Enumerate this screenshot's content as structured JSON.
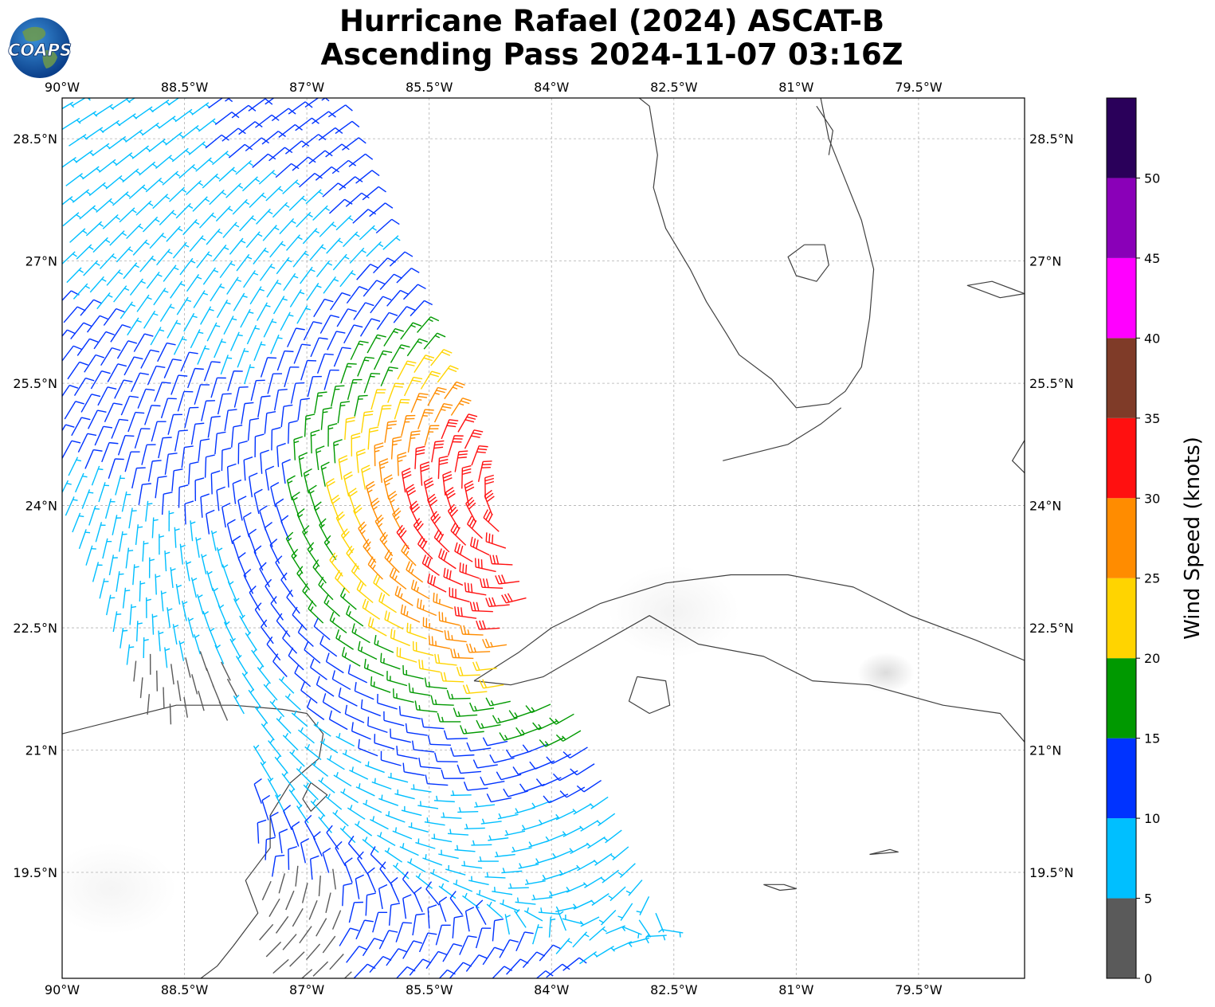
{
  "title": {
    "line1": "Hurricane Rafael (2024) ASCAT-B",
    "line2": "Ascending Pass 2024-11-07 03:16Z"
  },
  "logo": {
    "text": "COAPS",
    "icon": "globe-logo-icon"
  },
  "map": {
    "extent": {
      "lon_min": -90.0,
      "lon_max": -78.2,
      "lat_min": 18.2,
      "lat_max": 29.0
    },
    "lon_ticks": [
      {
        "value": -90.0,
        "label": "90°W"
      },
      {
        "value": -88.5,
        "label": "88.5°W"
      },
      {
        "value": -87.0,
        "label": "87°W"
      },
      {
        "value": -85.5,
        "label": "85.5°W"
      },
      {
        "value": -84.0,
        "label": "84°W"
      },
      {
        "value": -82.5,
        "label": "82.5°W"
      },
      {
        "value": -81.0,
        "label": "81°W"
      },
      {
        "value": -79.5,
        "label": "79.5°W"
      }
    ],
    "lat_ticks": [
      {
        "value": 28.5,
        "label": "28.5°N"
      },
      {
        "value": 27.0,
        "label": "27°N"
      },
      {
        "value": 25.5,
        "label": "25.5°N"
      },
      {
        "value": 24.0,
        "label": "24°N"
      },
      {
        "value": 22.5,
        "label": "22.5°N"
      },
      {
        "value": 21.0,
        "label": "21°N"
      },
      {
        "value": 19.5,
        "label": "19.5°N"
      }
    ],
    "gridlines": true,
    "storm_center": {
      "lon": -84.2,
      "lat": 23.9
    },
    "swath": {
      "start": {
        "lon": -89.4,
        "lat": 29.1
      },
      "end": {
        "lon": -84.8,
        "lat": 17.9
      },
      "half_width_deg": 2.5,
      "spacing_deg": 0.22
    }
  },
  "colorbar": {
    "label": "Wind Speed (knots)",
    "ticks": [
      {
        "value": 0,
        "label": "0"
      },
      {
        "value": 5,
        "label": "5"
      },
      {
        "value": 10,
        "label": "10"
      },
      {
        "value": 15,
        "label": "15"
      },
      {
        "value": 20,
        "label": "20"
      },
      {
        "value": 25,
        "label": "25"
      },
      {
        "value": 30,
        "label": "30"
      },
      {
        "value": 35,
        "label": "35"
      },
      {
        "value": 40,
        "label": "40"
      },
      {
        "value": 45,
        "label": "45"
      },
      {
        "value": 50,
        "label": "50"
      }
    ],
    "range": [
      0,
      55
    ],
    "bins": [
      {
        "min": 0,
        "max": 5,
        "color": "#5a5a5a"
      },
      {
        "min": 5,
        "max": 10,
        "color": "#00bfff"
      },
      {
        "min": 10,
        "max": 15,
        "color": "#0033ff"
      },
      {
        "min": 15,
        "max": 20,
        "color": "#009900"
      },
      {
        "min": 20,
        "max": 25,
        "color": "#ffd400"
      },
      {
        "min": 25,
        "max": 30,
        "color": "#ff8c00"
      },
      {
        "min": 30,
        "max": 35,
        "color": "#ff1010"
      },
      {
        "min": 35,
        "max": 40,
        "color": "#7f3b28"
      },
      {
        "min": 40,
        "max": 45,
        "color": "#ff00ff"
      },
      {
        "min": 45,
        "max": 50,
        "color": "#8a00b8"
      },
      {
        "min": 50,
        "max": 55,
        "color": "#2a005a"
      }
    ]
  },
  "coastline": {
    "florida": [
      [
        -87.6,
        30.2
      ],
      [
        -86.5,
        30.4
      ],
      [
        -85.4,
        30.0
      ],
      [
        -84.8,
        29.7
      ],
      [
        -84.4,
        29.9
      ],
      [
        -83.7,
        29.9
      ],
      [
        -83.3,
        29.3
      ],
      [
        -82.8,
        28.9
      ],
      [
        -82.7,
        28.3
      ],
      [
        -82.75,
        27.9
      ],
      [
        -82.6,
        27.4
      ],
      [
        -82.3,
        26.9
      ],
      [
        -82.1,
        26.5
      ],
      [
        -81.85,
        26.1
      ],
      [
        -81.7,
        25.85
      ],
      [
        -81.3,
        25.55
      ],
      [
        -81.0,
        25.2
      ],
      [
        -80.6,
        25.25
      ],
      [
        -80.4,
        25.4
      ],
      [
        -80.2,
        25.7
      ],
      [
        -80.1,
        26.3
      ],
      [
        -80.05,
        26.9
      ],
      [
        -80.2,
        27.5
      ],
      [
        -80.4,
        28.0
      ],
      [
        -80.6,
        28.5
      ],
      [
        -80.7,
        29.0
      ],
      [
        -81.0,
        29.5
      ]
    ],
    "keys": [
      [
        -80.45,
        25.2
      ],
      [
        -80.7,
        25.0
      ],
      [
        -81.1,
        24.75
      ],
      [
        -81.5,
        24.65
      ],
      [
        -81.9,
        24.55
      ]
    ],
    "okeechobee": [
      [
        -80.9,
        27.2
      ],
      [
        -80.65,
        27.2
      ],
      [
        -80.6,
        26.95
      ],
      [
        -80.75,
        26.75
      ],
      [
        -81.0,
        26.82
      ],
      [
        -81.1,
        27.05
      ],
      [
        -80.9,
        27.2
      ]
    ],
    "cuba": [
      [
        -84.95,
        21.85
      ],
      [
        -84.4,
        22.2
      ],
      [
        -84.0,
        22.5
      ],
      [
        -83.4,
        22.8
      ],
      [
        -82.6,
        23.05
      ],
      [
        -81.8,
        23.15
      ],
      [
        -81.1,
        23.15
      ],
      [
        -80.3,
        23.0
      ],
      [
        -79.6,
        22.65
      ],
      [
        -78.8,
        22.35
      ],
      [
        -78.2,
        22.1
      ],
      [
        -78.2,
        21.1
      ],
      [
        -78.5,
        21.45
      ],
      [
        -79.2,
        21.55
      ],
      [
        -80.1,
        21.8
      ],
      [
        -80.8,
        21.85
      ],
      [
        -81.4,
        22.15
      ],
      [
        -82.2,
        22.3
      ],
      [
        -82.8,
        22.65
      ],
      [
        -83.5,
        22.25
      ],
      [
        -84.1,
        21.9
      ],
      [
        -84.5,
        21.8
      ],
      [
        -84.95,
        21.85
      ]
    ],
    "isla_juventud": [
      [
        -82.95,
        21.9
      ],
      [
        -82.6,
        21.85
      ],
      [
        -82.55,
        21.55
      ],
      [
        -82.8,
        21.45
      ],
      [
        -83.05,
        21.6
      ],
      [
        -82.95,
        21.9
      ]
    ],
    "yucatan": [
      [
        -90.0,
        21.2
      ],
      [
        -89.4,
        21.35
      ],
      [
        -88.6,
        21.55
      ],
      [
        -87.9,
        21.55
      ],
      [
        -87.3,
        21.5
      ],
      [
        -87.0,
        21.45
      ],
      [
        -86.8,
        21.2
      ],
      [
        -86.85,
        20.9
      ],
      [
        -87.2,
        20.6
      ],
      [
        -87.45,
        20.2
      ],
      [
        -87.45,
        19.8
      ],
      [
        -87.75,
        19.4
      ],
      [
        -87.6,
        19.0
      ],
      [
        -87.9,
        18.6
      ],
      [
        -88.1,
        18.35
      ],
      [
        -88.3,
        18.2
      ]
    ],
    "cozumel": [
      [
        -86.95,
        20.6
      ],
      [
        -86.75,
        20.45
      ],
      [
        -86.95,
        20.25
      ],
      [
        -87.05,
        20.4
      ],
      [
        -86.95,
        20.6
      ]
    ],
    "cayman": [
      [
        -81.4,
        19.35
      ],
      [
        -81.15,
        19.35
      ],
      [
        -81.0,
        19.3
      ],
      [
        -81.2,
        19.28
      ],
      [
        -81.4,
        19.35
      ]
    ],
    "cayman_b": [
      [
        -80.1,
        19.72
      ],
      [
        -79.85,
        19.78
      ],
      [
        -79.75,
        19.75
      ],
      [
        -80.1,
        19.72
      ]
    ],
    "bahamas_a": [
      [
        -78.2,
        26.6
      ],
      [
        -78.6,
        26.75
      ],
      [
        -78.9,
        26.7
      ],
      [
        -78.5,
        26.55
      ],
      [
        -78.2,
        26.6
      ]
    ],
    "bahamas_b": [
      [
        -78.2,
        24.8
      ],
      [
        -78.35,
        24.55
      ],
      [
        -78.2,
        24.4
      ]
    ],
    "cape_canaveral": [
      [
        -80.75,
        28.9
      ],
      [
        -80.55,
        28.6
      ],
      [
        -80.6,
        28.3
      ]
    ]
  },
  "land_shade": [
    {
      "lon": -79.9,
      "lat": 21.95,
      "r": 0.35,
      "opacity": 0.35
    },
    {
      "lon": -82.5,
      "lat": 22.7,
      "r": 0.8,
      "opacity": 0.12
    },
    {
      "lon": -89.4,
      "lat": 19.3,
      "r": 0.8,
      "opacity": 0.1
    }
  ]
}
